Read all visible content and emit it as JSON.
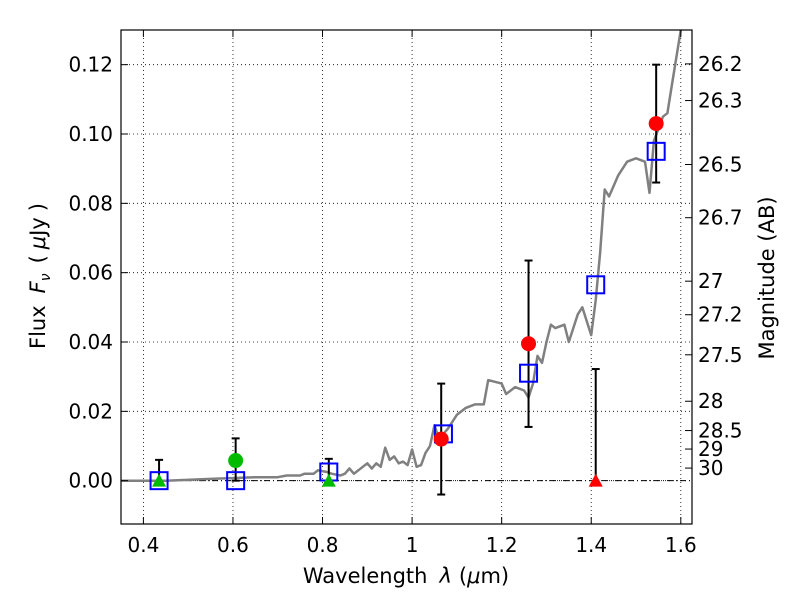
{
  "chart_data": {
    "type": "scatter",
    "title": "",
    "xlabel": {
      "prefix": "Wavelength",
      "symbol": "λ",
      "unit_open": "(",
      "unit_mu": "μ",
      "unit_rest": "m)"
    },
    "ylabel": {
      "prefix": "Flux",
      "symbol": "F",
      "subscript": "ν",
      "unit_open": "(",
      "unit_mu": "μ",
      "unit_rest": "Jy",
      "unit_close": ")"
    },
    "ylabel_right": "Magnitude (AB)",
    "xlim": [
      0.35,
      1.625
    ],
    "ylim": [
      -0.0125,
      0.13
    ],
    "grid": true,
    "x_ticks": [
      {
        "value": 0.4,
        "label": "0.4"
      },
      {
        "value": 0.6,
        "label": "0.6"
      },
      {
        "value": 0.8,
        "label": "0.8"
      },
      {
        "value": 1.0,
        "label": "1"
      },
      {
        "value": 1.2,
        "label": "1.2"
      },
      {
        "value": 1.4,
        "label": "1.4"
      },
      {
        "value": 1.6,
        "label": "1.6"
      }
    ],
    "y_ticks": [
      {
        "value": 0.0,
        "label": "0.00"
      },
      {
        "value": 0.02,
        "label": "0.02"
      },
      {
        "value": 0.04,
        "label": "0.04"
      },
      {
        "value": 0.06,
        "label": "0.06"
      },
      {
        "value": 0.08,
        "label": "0.08"
      },
      {
        "value": 0.1,
        "label": "0.10"
      },
      {
        "value": 0.12,
        "label": "0.12"
      }
    ],
    "mag_ticks": [
      {
        "value": 26.2,
        "label": "26.2"
      },
      {
        "value": 26.3,
        "label": "26.3"
      },
      {
        "value": 26.5,
        "label": "26.5"
      },
      {
        "value": 26.7,
        "label": "26.7"
      },
      {
        "value": 27.0,
        "label": "27"
      },
      {
        "value": 27.2,
        "label": "27.2"
      },
      {
        "value": 27.5,
        "label": "27.5"
      },
      {
        "value": 28.0,
        "label": "28"
      },
      {
        "value": 28.5,
        "label": "28.5"
      },
      {
        "value": 29.0,
        "label": "29"
      },
      {
        "value": 30.0,
        "label": "30"
      }
    ],
    "zero_line": 0.0,
    "sed_model": {
      "color": "#808080",
      "x": [
        0.35,
        0.45,
        0.55,
        0.65,
        0.7,
        0.72,
        0.75,
        0.76,
        0.78,
        0.79,
        0.81,
        0.82,
        0.84,
        0.85,
        0.86,
        0.87,
        0.88,
        0.89,
        0.9,
        0.91,
        0.92,
        0.93,
        0.94,
        0.95,
        0.96,
        0.97,
        0.98,
        0.99,
        1.0,
        1.01,
        1.02,
        1.03,
        1.04,
        1.05,
        1.06,
        1.08,
        1.1,
        1.12,
        1.14,
        1.16,
        1.17,
        1.2,
        1.21,
        1.23,
        1.25,
        1.26,
        1.27,
        1.28,
        1.29,
        1.3,
        1.31,
        1.32,
        1.34,
        1.35,
        1.37,
        1.38,
        1.4,
        1.41,
        1.42,
        1.43,
        1.44,
        1.46,
        1.48,
        1.5,
        1.52,
        1.53,
        1.54,
        1.56,
        1.57,
        1.58,
        1.59,
        1.6
      ],
      "y": [
        0.0,
        0.0,
        0.0005,
        0.001,
        0.001,
        0.0015,
        0.0015,
        0.002,
        0.002,
        0.003,
        0.0025,
        0.002,
        0.0015,
        0.002,
        0.0035,
        0.002,
        0.003,
        0.004,
        0.005,
        0.0035,
        0.005,
        0.004,
        0.0095,
        0.006,
        0.007,
        0.005,
        0.0055,
        0.0045,
        0.009,
        0.004,
        0.0045,
        0.008,
        0.01,
        0.016,
        0.012,
        0.015,
        0.019,
        0.021,
        0.022,
        0.022,
        0.029,
        0.028,
        0.025,
        0.027,
        0.026,
        0.024,
        0.028,
        0.036,
        0.034,
        0.04,
        0.045,
        0.044,
        0.045,
        0.04,
        0.048,
        0.05,
        0.042,
        0.052,
        0.066,
        0.084,
        0.082,
        0.088,
        0.092,
        0.093,
        0.092,
        0.083,
        0.098,
        0.105,
        0.106,
        0.114,
        0.122,
        0.13
      ]
    },
    "series": [
      {
        "name": "model_photometry",
        "marker": "open-square",
        "color": "#0000ff",
        "points": [
          {
            "x": 0.435,
            "y": 0.0
          },
          {
            "x": 0.606,
            "y": 0.0
          },
          {
            "x": 0.814,
            "y": 0.0025
          },
          {
            "x": 1.07,
            "y": 0.0135
          },
          {
            "x": 1.26,
            "y": 0.031
          },
          {
            "x": 1.41,
            "y": 0.0565
          },
          {
            "x": 1.545,
            "y": 0.095
          }
        ]
      },
      {
        "name": "observed_optical",
        "marker": "circle",
        "color": "#00bb00",
        "points": [
          {
            "x": 0.606,
            "y": 0.0058,
            "yerr_low": 0.0058,
            "yerr_high": 0.0064
          }
        ]
      },
      {
        "name": "optical_limits",
        "marker": "triangle",
        "color": "#00bb00",
        "points": [
          {
            "x": 0.435,
            "y": 0.0,
            "yerr_low": 0.0,
            "yerr_high": 0.006
          },
          {
            "x": 0.814,
            "y": 0.0,
            "yerr_low": 0.0,
            "yerr_high": 0.0063
          }
        ]
      },
      {
        "name": "observed_nir",
        "marker": "circle",
        "color": "#ff0000",
        "points": [
          {
            "x": 1.065,
            "y": 0.012,
            "yerr_low": 0.016,
            "yerr_high": 0.016
          },
          {
            "x": 1.26,
            "y": 0.0395,
            "yerr_low": 0.024,
            "yerr_high": 0.024
          },
          {
            "x": 1.545,
            "y": 0.103,
            "yerr_low": 0.017,
            "yerr_high": 0.017
          }
        ]
      },
      {
        "name": "nir_limit",
        "marker": "triangle",
        "color": "#ff0000",
        "points": [
          {
            "x": 1.41,
            "y": 0.0,
            "yerr_low": 0.0,
            "yerr_high": 0.0322
          }
        ]
      }
    ]
  }
}
